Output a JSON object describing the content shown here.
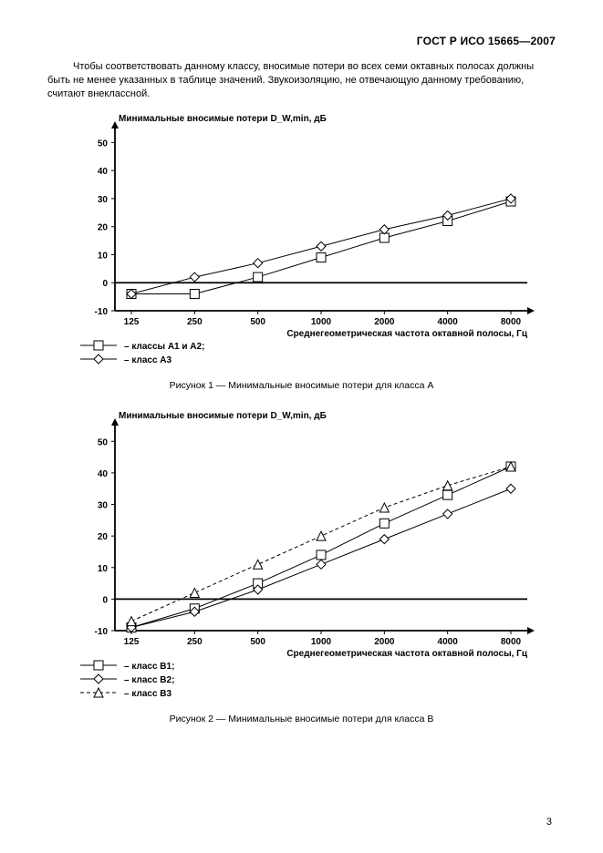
{
  "doc_header": "ГОСТ Р ИСО 15665—2007",
  "page_number": "3",
  "body_text": "Чтобы соответствовать данному классу, вносимые потери во всех семи октавных полосах должны быть не менее указанных в таблице значений. Звукоизоляцию, не отвечающую данному требованию, считают внеклассной.",
  "chart1": {
    "type": "line",
    "y_title": "Минимальные вносимые потери D_W,min, дБ",
    "x_title": "Среднегеометрическая частота октавной полосы, Гц",
    "x_categories": [
      "125",
      "250",
      "500",
      "1000",
      "2000",
      "4000",
      "8000"
    ],
    "y_ticks": [
      -10,
      0,
      10,
      20,
      30,
      40,
      50
    ],
    "ylim": [
      -10,
      55
    ],
    "series": [
      {
        "name": "– классы А1 и А2;",
        "marker": "square",
        "dash": "solid",
        "color": "#000",
        "values": [
          -4,
          -4,
          2,
          9,
          16,
          22,
          29
        ]
      },
      {
        "name": "– класс А3",
        "marker": "diamond",
        "dash": "solid",
        "color": "#000",
        "values": [
          -4,
          2,
          7,
          13,
          19,
          24,
          30
        ]
      }
    ],
    "caption": "Рисунок 1 — Минимальные вносимые потери для класса А",
    "grid_color": "#000",
    "background": "#fff",
    "line_width": 1,
    "marker_size": 5
  },
  "chart2": {
    "type": "line",
    "y_title": "Минимальные вносимые потери D_W,min, дБ",
    "x_title": "Среднегеометрическая частота октавной полосы, Гц",
    "x_categories": [
      "125",
      "250",
      "500",
      "1000",
      "2000",
      "4000",
      "8000"
    ],
    "y_ticks": [
      -10,
      0,
      10,
      20,
      30,
      40,
      50
    ],
    "ylim": [
      -10,
      55
    ],
    "series": [
      {
        "name": "– класс В1;",
        "marker": "square",
        "dash": "solid",
        "color": "#000",
        "values": [
          -9,
          -3,
          5,
          14,
          24,
          33,
          42
        ]
      },
      {
        "name": "– класс В2;",
        "marker": "diamond",
        "dash": "solid",
        "color": "#000",
        "values": [
          -9,
          -4,
          3,
          11,
          19,
          27,
          35
        ]
      },
      {
        "name": "– класс В3",
        "marker": "triangle",
        "dash": "dashed",
        "color": "#000",
        "values": [
          -7,
          2,
          11,
          20,
          29,
          36,
          42
        ]
      }
    ],
    "caption": "Рисунок 2 — Минимальные вносимые потери для класса В",
    "grid_color": "#000",
    "background": "#fff",
    "line_width": 1,
    "marker_size": 5
  }
}
